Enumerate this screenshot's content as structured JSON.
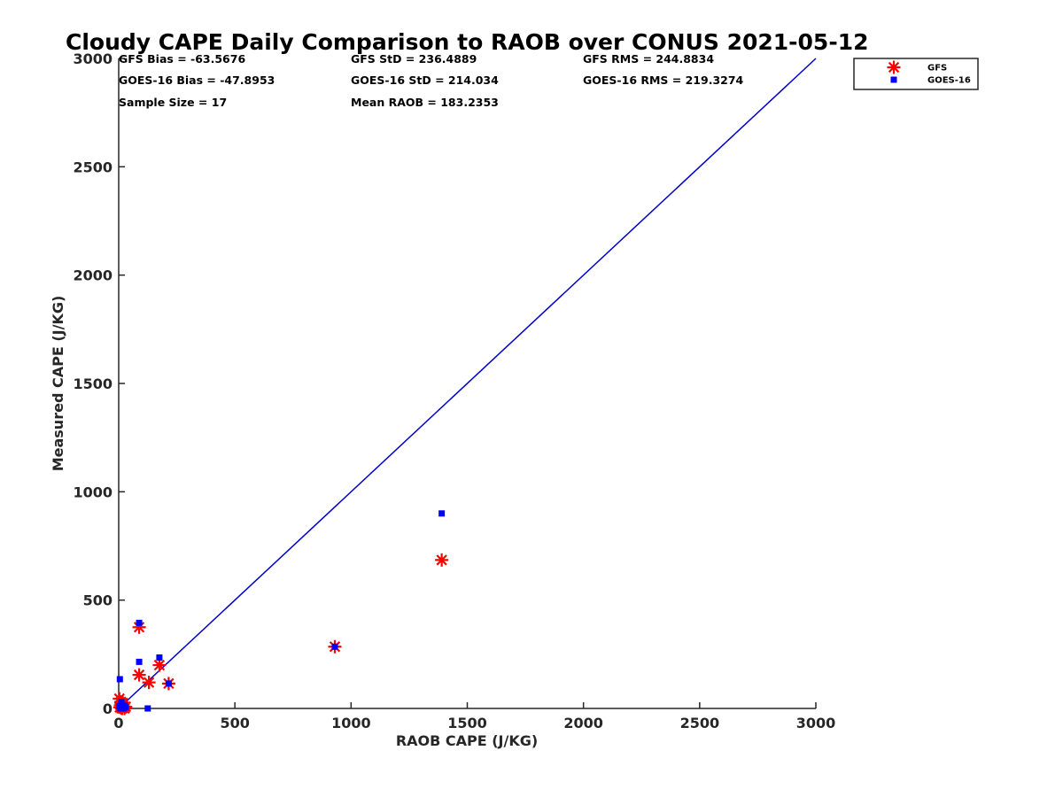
{
  "chart_data": {
    "type": "scatter",
    "title": "Cloudy CAPE Daily Comparison to RAOB over CONUS 2021-05-12",
    "xlabel": "RAOB CAPE (J/KG)",
    "ylabel": "Measured CAPE (J/KG)",
    "xlim": [
      0,
      3000
    ],
    "ylim": [
      0,
      3000
    ],
    "xticks": [
      "0",
      "500",
      "1000",
      "1500",
      "2000",
      "2500",
      "3000"
    ],
    "yticks": [
      "0",
      "500",
      "1000",
      "1500",
      "2000",
      "2500",
      "3000"
    ],
    "grid": false,
    "legend_position": "top-right",
    "reference_line": {
      "from": [
        0,
        0
      ],
      "to": [
        3000,
        3000
      ],
      "color": "#0000cc"
    },
    "stats": [
      [
        "GFS Bias = -63.5676",
        "GFS StD = 236.4889",
        "GFS RMS = 244.8834"
      ],
      [
        "GOES-16 Bias = -47.8953",
        "GOES-16 StD = 214.034",
        "GOES-16 RMS = 219.3274"
      ],
      [
        "Sample Size = 17",
        "Mean RAOB = 183.2353",
        ""
      ]
    ],
    "series": [
      {
        "name": "GFS",
        "marker": "asterisk",
        "color": "#ff0000",
        "points": [
          [
            3,
            45
          ],
          [
            5,
            5
          ],
          [
            8,
            15
          ],
          [
            10,
            30
          ],
          [
            12,
            2
          ],
          [
            15,
            0
          ],
          [
            20,
            10
          ],
          [
            25,
            0
          ],
          [
            88,
            155
          ],
          [
            88,
            375
          ],
          [
            130,
            120
          ],
          [
            175,
            200
          ],
          [
            215,
            115
          ],
          [
            930,
            285
          ],
          [
            1390,
            685
          ],
          [
            18,
            25
          ],
          [
            30,
            8
          ]
        ]
      },
      {
        "name": "GOES-16",
        "marker": "square",
        "color": "#0000ff",
        "points": [
          [
            3,
            10
          ],
          [
            5,
            135
          ],
          [
            8,
            0
          ],
          [
            10,
            20
          ],
          [
            15,
            5
          ],
          [
            20,
            0
          ],
          [
            25,
            15
          ],
          [
            88,
            215
          ],
          [
            88,
            395
          ],
          [
            125,
            0
          ],
          [
            175,
            235
          ],
          [
            215,
            115
          ],
          [
            930,
            285
          ],
          [
            1390,
            900
          ],
          [
            12,
            30
          ],
          [
            30,
            5
          ],
          [
            18,
            10
          ]
        ]
      }
    ]
  }
}
